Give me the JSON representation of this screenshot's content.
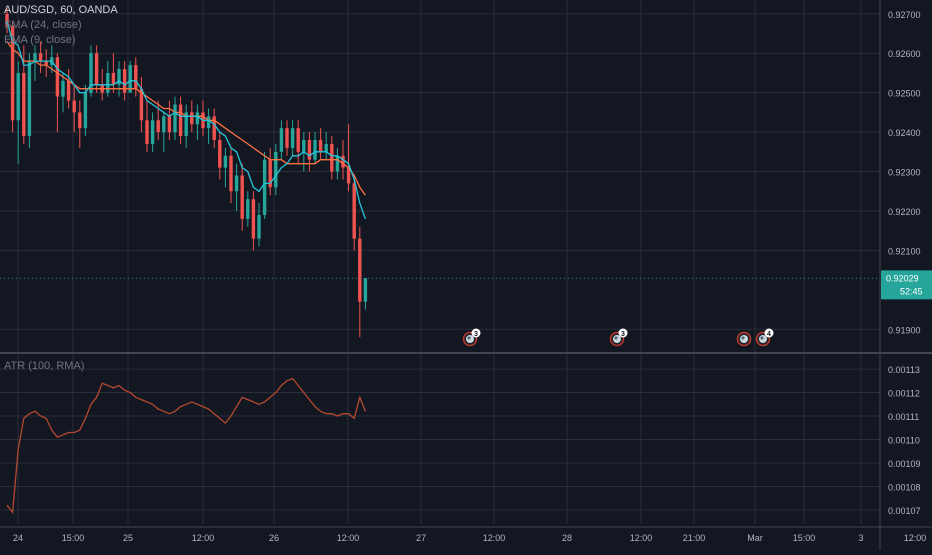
{
  "colors": {
    "background": "#131722",
    "grid": "#2a2e39",
    "separator": "#434651",
    "text": "#b2b5be",
    "bull": "#26a69a",
    "bear": "#ef5350",
    "sma": "#ff7043",
    "ema": "#26c6da",
    "atr": "#b5492f",
    "price_tag": "#26a69a",
    "event_ring": "#c0392b"
  },
  "legend": {
    "symbol": "AUD/SGD, 60, OANDA",
    "sma": "SMA (24, close)",
    "ema": "EMA (9, close)",
    "atr": "ATR (100, RMA)"
  },
  "price_tag": {
    "value": "0.92029",
    "countdown": "52:45"
  },
  "events": [
    {
      "label": "3",
      "time": "Feb 27 ~08:00"
    },
    {
      "label": "3",
      "time": "Feb 28 ~08:00"
    },
    {
      "label": "",
      "time": "Feb 28 ~23:00"
    },
    {
      "label": "4",
      "time": "Mar 1 ~02:00"
    }
  ],
  "chart_data": [
    {
      "type": "candlestick",
      "title": "AUD/SGD, 60, OANDA",
      "x_axis": {
        "tick_labels": [
          "24",
          "15:00",
          "25",
          "12:00",
          "26",
          "12:00",
          "27",
          "12:00",
          "28",
          "12:00",
          "21:00",
          "Mar",
          "15:00",
          "3",
          "12:00"
        ]
      },
      "y_axis": {
        "range": [
          0.91845,
          0.92735
        ],
        "tick_labels": [
          "0.92700",
          "0.92600",
          "0.92500",
          "0.92400",
          "0.92300",
          "0.92200",
          "0.92100",
          "0.91900"
        ]
      },
      "last_price": 0.92029,
      "candles": [
        [
          0.927,
          0.9272,
          0.9265,
          0.9267
        ],
        [
          0.9267,
          0.9268,
          0.924,
          0.9243
        ],
        [
          0.9243,
          0.9258,
          0.9232,
          0.9255
        ],
        [
          0.9255,
          0.9262,
          0.9237,
          0.9239
        ],
        [
          0.9239,
          0.926,
          0.9236,
          0.9258
        ],
        [
          0.9258,
          0.9262,
          0.9253,
          0.926
        ],
        [
          0.926,
          0.9263,
          0.9255,
          0.9258
        ],
        [
          0.9258,
          0.9261,
          0.9254,
          0.9257
        ],
        [
          0.9257,
          0.9262,
          0.9255,
          0.9259
        ],
        [
          0.9259,
          0.926,
          0.924,
          0.9249
        ],
        [
          0.9249,
          0.9255,
          0.9245,
          0.9253
        ],
        [
          0.9253,
          0.9256,
          0.9246,
          0.9248
        ],
        [
          0.9248,
          0.9252,
          0.924,
          0.9245
        ],
        [
          0.9245,
          0.9248,
          0.9236,
          0.9241
        ],
        [
          0.9241,
          0.9252,
          0.9239,
          0.925
        ],
        [
          0.925,
          0.9262,
          0.9249,
          0.926
        ],
        [
          0.926,
          0.9262,
          0.925,
          0.9252
        ],
        [
          0.9252,
          0.9256,
          0.9248,
          0.925
        ],
        [
          0.925,
          0.9258,
          0.9249,
          0.9255
        ],
        [
          0.9255,
          0.926,
          0.925,
          0.9252
        ],
        [
          0.9252,
          0.9258,
          0.9249,
          0.9256
        ],
        [
          0.9256,
          0.9258,
          0.9248,
          0.925
        ],
        [
          0.925,
          0.9258,
          0.925,
          0.9257
        ],
        [
          0.9257,
          0.9259,
          0.9249,
          0.9251
        ],
        [
          0.9251,
          0.9254,
          0.924,
          0.9243
        ],
        [
          0.9243,
          0.9248,
          0.9235,
          0.9237
        ],
        [
          0.9237,
          0.9245,
          0.9235,
          0.9243
        ],
        [
          0.9243,
          0.9248,
          0.9238,
          0.924
        ],
        [
          0.924,
          0.9245,
          0.9235,
          0.9244
        ],
        [
          0.9244,
          0.9248,
          0.9238,
          0.924
        ],
        [
          0.924,
          0.9249,
          0.9238,
          0.9247
        ],
        [
          0.9247,
          0.9249,
          0.9237,
          0.9239
        ],
        [
          0.9239,
          0.9247,
          0.9236,
          0.9245
        ],
        [
          0.9245,
          0.9248,
          0.924,
          0.9242
        ],
        [
          0.9242,
          0.9247,
          0.9238,
          0.9245
        ],
        [
          0.9245,
          0.9248,
          0.9239,
          0.9241
        ],
        [
          0.9241,
          0.9246,
          0.9237,
          0.9244
        ],
        [
          0.9244,
          0.9246,
          0.9236,
          0.9238
        ],
        [
          0.9238,
          0.924,
          0.9228,
          0.9231
        ],
        [
          0.9231,
          0.9236,
          0.9226,
          0.9234
        ],
        [
          0.9234,
          0.9236,
          0.9222,
          0.9225
        ],
        [
          0.9225,
          0.9232,
          0.922,
          0.9229
        ],
        [
          0.9229,
          0.9232,
          0.9215,
          0.9218
        ],
        [
          0.9218,
          0.9225,
          0.9216,
          0.9223
        ],
        [
          0.9223,
          0.9225,
          0.921,
          0.9213
        ],
        [
          0.9213,
          0.9222,
          0.9211,
          0.9219
        ],
        [
          0.9219,
          0.9235,
          0.9218,
          0.9233
        ],
        [
          0.9233,
          0.9236,
          0.9224,
          0.9226
        ],
        [
          0.9226,
          0.9237,
          0.9224,
          0.9235
        ],
        [
          0.9235,
          0.9243,
          0.9233,
          0.9241
        ],
        [
          0.9241,
          0.9243,
          0.9234,
          0.9236
        ],
        [
          0.9236,
          0.9243,
          0.9234,
          0.9241
        ],
        [
          0.9241,
          0.9243,
          0.9232,
          0.9235
        ],
        [
          0.9235,
          0.924,
          0.923,
          0.9238
        ],
        [
          0.9238,
          0.924,
          0.923,
          0.9233
        ],
        [
          0.9233,
          0.924,
          0.9232,
          0.9238
        ],
        [
          0.9238,
          0.9241,
          0.9233,
          0.9235
        ],
        [
          0.9235,
          0.924,
          0.9233,
          0.9237
        ],
        [
          0.9237,
          0.9239,
          0.9228,
          0.923
        ],
        [
          0.923,
          0.9236,
          0.9228,
          0.9234
        ],
        [
          0.9234,
          0.9238,
          0.9228,
          0.9231
        ],
        [
          0.9231,
          0.9242,
          0.9225,
          0.9227
        ],
        [
          0.9227,
          0.9229,
          0.921,
          0.9213
        ],
        [
          0.9213,
          0.9216,
          0.9188,
          0.9197
        ],
        [
          0.9197,
          0.9203,
          0.9195,
          0.9203
        ]
      ],
      "series": [
        {
          "name": "SMA (24, close)",
          "values": [
            0.9263,
            0.9261,
            0.926,
            0.9258,
            0.9258,
            0.9258,
            0.9257,
            0.9257,
            0.9256,
            0.9255,
            0.9254,
            0.9253,
            0.9252,
            0.9251,
            0.9251,
            0.9251,
            0.9251,
            0.9251,
            0.9251,
            0.9251,
            0.9251,
            0.9251,
            0.9251,
            0.9251,
            0.925,
            0.9249,
            0.9248,
            0.9247,
            0.9246,
            0.9246,
            0.9245,
            0.9245,
            0.9244,
            0.9244,
            0.9244,
            0.9244,
            0.9243,
            0.9243,
            0.9242,
            0.9241,
            0.924,
            0.9239,
            0.9238,
            0.9237,
            0.9236,
            0.9235,
            0.9234,
            0.9233,
            0.9233,
            0.9233,
            0.9232,
            0.9232,
            0.9232,
            0.9232,
            0.9232,
            0.9232,
            0.9233,
            0.9233,
            0.9233,
            0.9233,
            0.9232,
            0.9231,
            0.9229,
            0.9226,
            0.9224
          ]
        },
        {
          "name": "EMA (9, close)",
          "values": [
            0.9268,
            0.9263,
            0.9262,
            0.9257,
            0.9257,
            0.9258,
            0.9258,
            0.9258,
            0.9258,
            0.9256,
            0.9255,
            0.9254,
            0.9252,
            0.925,
            0.925,
            0.9252,
            0.9252,
            0.9252,
            0.9252,
            0.9252,
            0.9253,
            0.9252,
            0.9253,
            0.9253,
            0.9251,
            0.9248,
            0.9247,
            0.9246,
            0.9245,
            0.9244,
            0.9245,
            0.9244,
            0.9244,
            0.9244,
            0.9244,
            0.9243,
            0.9243,
            0.9242,
            0.924,
            0.9239,
            0.9236,
            0.9235,
            0.9231,
            0.923,
            0.9226,
            0.9225,
            0.9227,
            0.9227,
            0.9229,
            0.9231,
            0.9232,
            0.9234,
            0.9234,
            0.9235,
            0.9234,
            0.9235,
            0.9235,
            0.9235,
            0.9234,
            0.9234,
            0.9233,
            0.9232,
            0.9228,
            0.9222,
            0.9218
          ]
        }
      ]
    },
    {
      "type": "line",
      "title": "ATR (100, RMA)",
      "y_axis": {
        "range": [
          0.001064,
          0.001136
        ],
        "tick_labels": [
          "0.00113",
          "0.00112",
          "0.00111",
          "0.00110",
          "0.00109",
          "0.00108",
          "0.00107"
        ]
      },
      "series": [
        {
          "name": "ATR (100, RMA)",
          "values": [
            0.001072,
            0.001069,
            0.001096,
            0.001109,
            0.001111,
            0.001112,
            0.00111,
            0.001109,
            0.001104,
            0.001101,
            0.001102,
            0.001103,
            0.001103,
            0.001104,
            0.001109,
            0.001115,
            0.001118,
            0.001124,
            0.001123,
            0.001122,
            0.001123,
            0.001121,
            0.00112,
            0.001118,
            0.001117,
            0.001116,
            0.001115,
            0.001113,
            0.001112,
            0.001111,
            0.001112,
            0.001114,
            0.001115,
            0.001116,
            0.001115,
            0.001114,
            0.001113,
            0.001111,
            0.001109,
            0.001107,
            0.00111,
            0.001114,
            0.001118,
            0.001117,
            0.001116,
            0.001115,
            0.001116,
            0.001118,
            0.00112,
            0.001123,
            0.001125,
            0.001126,
            0.001123,
            0.00112,
            0.001117,
            0.001114,
            0.001112,
            0.001111,
            0.001111,
            0.00111,
            0.001111,
            0.001111,
            0.001109,
            0.001118,
            0.001112
          ]
        }
      ]
    }
  ]
}
